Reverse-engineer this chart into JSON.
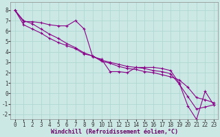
{
  "xlabel": "Windchill (Refroidissement éolien,°C)",
  "background_color": "#cce8e4",
  "grid_color": "#aad4d0",
  "line_color": "#880088",
  "xlim": [
    -0.5,
    23.5
  ],
  "ylim": [
    -2.5,
    8.8
  ],
  "xticks": [
    0,
    1,
    2,
    3,
    4,
    5,
    6,
    7,
    8,
    9,
    10,
    11,
    12,
    13,
    14,
    15,
    16,
    17,
    18,
    19,
    20,
    21,
    22,
    23
  ],
  "yticks": [
    -2,
    -1,
    0,
    1,
    2,
    3,
    4,
    5,
    6,
    7,
    8
  ],
  "line1_x": [
    0,
    1,
    2,
    3,
    4,
    5,
    6,
    7,
    8,
    9,
    10,
    11,
    12,
    13,
    14,
    15,
    16,
    17,
    18,
    19,
    20,
    21,
    22,
    23
  ],
  "line1_y": [
    8.0,
    6.9,
    6.9,
    6.8,
    6.6,
    6.5,
    6.5,
    7.0,
    6.2,
    3.5,
    3.3,
    2.1,
    2.1,
    2.0,
    2.5,
    2.5,
    2.5,
    2.4,
    2.2,
    1.0,
    -1.2,
    -2.5,
    0.2,
    -1.1
  ],
  "line2_x": [
    0,
    1,
    2,
    3,
    4,
    5,
    6,
    7,
    8,
    9,
    10,
    11,
    12,
    13,
    14,
    15,
    16,
    17,
    18,
    19,
    20,
    21,
    22,
    23
  ],
  "line2_y": [
    8.0,
    6.6,
    6.2,
    5.8,
    5.3,
    4.9,
    4.6,
    4.3,
    3.8,
    3.6,
    3.2,
    3.0,
    2.8,
    2.6,
    2.5,
    2.4,
    2.2,
    2.1,
    1.9,
    0.9,
    -0.3,
    -1.5,
    -1.3,
    -1.1
  ],
  "line3_x": [
    0,
    1,
    2,
    3,
    4,
    5,
    6,
    7,
    8,
    9,
    10,
    11,
    12,
    13,
    14,
    15,
    16,
    17,
    18,
    19,
    20,
    21,
    22,
    23
  ],
  "line3_y": [
    8.0,
    7.0,
    6.7,
    6.2,
    5.7,
    5.3,
    4.8,
    4.4,
    3.9,
    3.6,
    3.1,
    2.9,
    2.6,
    2.4,
    2.3,
    2.1,
    2.0,
    1.8,
    1.6,
    1.3,
    0.6,
    -0.4,
    -0.6,
    -0.9
  ],
  "marker": "+",
  "markersize": 3,
  "linewidth": 0.8,
  "xlabel_color": "#660066",
  "xlabel_fontsize": 6.0,
  "tick_fontsize": 5.5,
  "spine_color": "#888888"
}
